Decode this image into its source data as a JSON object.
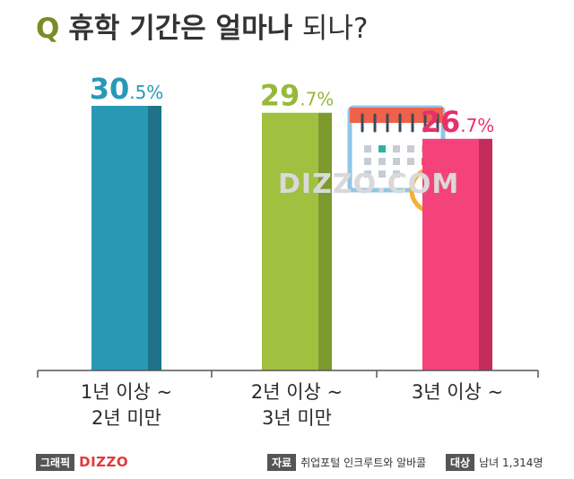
{
  "title": {
    "q": "Q",
    "main": "휴학 기간은 얼마나",
    "light": "되나?"
  },
  "watermark": "DIZZO.COM",
  "chart_data": {
    "type": "bar",
    "categories": [
      [
        "1년 이상 ~",
        "2년 미만"
      ],
      [
        "2년 이상 ~",
        "3년 미만"
      ],
      [
        "3년 이상 ~"
      ]
    ],
    "values": [
      30.5,
      29.7,
      26.7
    ],
    "value_labels": [
      {
        "int": "30",
        "dec": ".5%"
      },
      {
        "int": "29",
        "dec": ".7%"
      },
      {
        "int": "26",
        "dec": ".7%"
      }
    ],
    "colors": [
      {
        "face": "#2899b5",
        "side": "#1e7388",
        "label": "#2899b5"
      },
      {
        "face": "#a0c040",
        "side": "#7d9a2e",
        "label": "#98b83a"
      },
      {
        "face": "#f4437a",
        "side": "#c22d5d",
        "label": "#e8306b"
      }
    ],
    "ylim": [
      0,
      30.5
    ]
  },
  "footer": {
    "graphic_tag": "그래픽",
    "brand": "DIZZO",
    "source_tag": "자료",
    "source": "취업포털 인크루트와 알바콜",
    "target_tag": "대상",
    "target": "남녀 1,314명"
  }
}
